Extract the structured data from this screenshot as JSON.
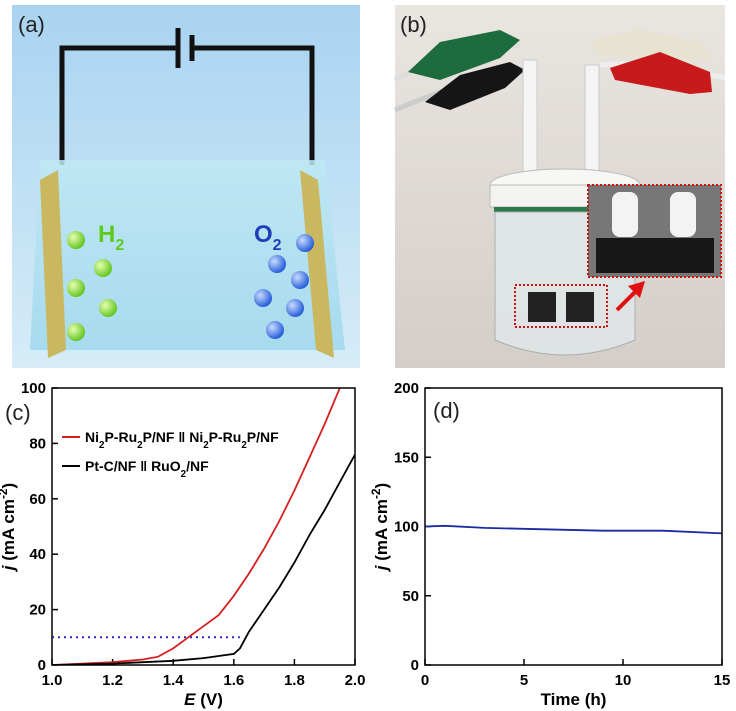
{
  "panels": {
    "a": {
      "label": "(a)",
      "h2_label": "H",
      "h2_sub": "2",
      "o2_label": "O",
      "o2_sub": "2"
    },
    "b": {
      "label": "(b)"
    }
  },
  "chart_data": [
    {
      "type": "line",
      "panel_label": "(c)",
      "xlabel": "E (V)",
      "ylabel": "j (mA cm-2)",
      "xlim": [
        1.0,
        2.0
      ],
      "xticks": [
        {
          "value": 1.0,
          "label": "1.0"
        },
        {
          "value": 1.2,
          "label": "1.2"
        },
        {
          "value": 1.4,
          "label": "1.4"
        },
        {
          "value": 1.6,
          "label": "1.6"
        },
        {
          "value": 1.8,
          "label": "1.8"
        },
        {
          "value": 2.0,
          "label": "2.0"
        }
      ],
      "ylim": [
        0,
        100
      ],
      "yticks": [
        0,
        20,
        40,
        60,
        80,
        100
      ],
      "series": [
        {
          "name": "Ni2P-Ru2P/NF ǁ Ni2P-Ru2P/NF",
          "color": "#d42020",
          "x": [
            1.0,
            1.1,
            1.2,
            1.3,
            1.35,
            1.4,
            1.45,
            1.5,
            1.55,
            1.6,
            1.65,
            1.7,
            1.75,
            1.8,
            1.85,
            1.9,
            1.95
          ],
          "values": [
            0,
            0.5,
            1,
            2,
            3,
            6,
            10,
            14,
            18,
            25,
            33,
            42,
            52,
            63,
            75,
            87,
            100
          ]
        },
        {
          "name": "Pt-C/NF ǁ RuO2/NF",
          "color": "#000000",
          "x": [
            1.0,
            1.2,
            1.4,
            1.5,
            1.6,
            1.62,
            1.65,
            1.7,
            1.75,
            1.8,
            1.85,
            1.9,
            1.95,
            2.0
          ],
          "values": [
            0,
            0.5,
            1.5,
            2.5,
            4,
            6,
            12,
            20,
            28,
            37,
            47,
            56,
            66,
            76
          ]
        }
      ],
      "reference_line": {
        "value": 10,
        "xmax": 1.62,
        "color": "#2a2ad0"
      }
    },
    {
      "type": "line",
      "panel_label": "(d)",
      "xlabel": "Time (h)",
      "ylabel": "j (mA cm-2)",
      "xlim": [
        0,
        15
      ],
      "xticks": [
        0,
        5,
        10,
        15
      ],
      "ylim": [
        0,
        200
      ],
      "yticks": [
        0,
        50,
        100,
        150,
        200
      ],
      "series": [
        {
          "name": null,
          "color": "#1a2aa0",
          "x": [
            0,
            1,
            3,
            6,
            9,
            12,
            15
          ],
          "values": [
            100,
            100.5,
            99,
            98,
            97,
            97,
            95
          ]
        }
      ]
    }
  ]
}
